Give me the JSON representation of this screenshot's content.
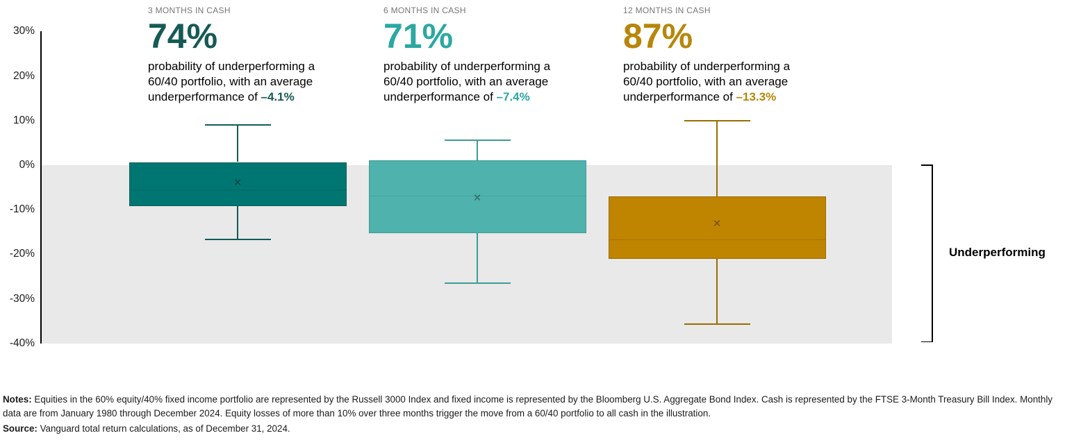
{
  "panels": [
    {
      "label": "3 MONTHS IN CASH",
      "big_number": "74%",
      "accent_color": "#165A54",
      "desc_prefix": "probability of underperforming a 60/40 portfolio, with an average underperformance of ",
      "underperformance_value": "–4.1%"
    },
    {
      "label": "6 MONTHS IN CASH",
      "big_number": "71%",
      "accent_color": "#2BA8A2",
      "desc_prefix": "probability of underperforming a 60/40 portfolio, with an average underperformance of ",
      "underperformance_value": "–7.4%"
    },
    {
      "label": "12 MONTHS IN CASH",
      "big_number": "87%",
      "accent_color": "#B7860A",
      "desc_prefix": "probability of underperforming a 60/40 portfolio, with an average underperformance of ",
      "underperformance_value": "–13.3%"
    }
  ],
  "chart_data": {
    "type": "boxplot",
    "title": "",
    "xlabel": "",
    "ylabel": "",
    "unit": "%",
    "ylim": [
      -40,
      30
    ],
    "grid": false,
    "y_ticks": [
      {
        "label": "30%",
        "value": 30
      },
      {
        "label": "20%",
        "value": 20
      },
      {
        "label": "10%",
        "value": 10
      },
      {
        "label": "0%",
        "value": 0
      },
      {
        "label": "-10%",
        "value": -10
      },
      {
        "label": "-20%",
        "value": -20
      },
      {
        "label": "-30%",
        "value": -30
      },
      {
        "label": "-40%",
        "value": -40
      }
    ],
    "series": [
      {
        "name": "3 months in cash",
        "whisker_high": 9.2,
        "q3": 0.7,
        "mean": -4.1,
        "median": -5.4,
        "q1": -9.2,
        "whisker_low": -16.5,
        "fill": "#007672",
        "line": "#0E5C59"
      },
      {
        "name": "6 months in cash",
        "whisker_high": 5.8,
        "q3": 1.1,
        "mean": -7.4,
        "median": -6.8,
        "q1": -15.3,
        "whisker_low": -26.4,
        "fill": "#50B2AC",
        "line": "#3C9C96"
      },
      {
        "name": "12 months in cash",
        "whisker_high": 10.1,
        "q3": -7.0,
        "mean": -13.3,
        "median": -16.6,
        "q1": -21.0,
        "whisker_low": -35.5,
        "fill": "#BF8400",
        "line": "#9A6C00"
      }
    ],
    "mean_marker": "×",
    "shaded_region": {
      "from": 0,
      "to": -40,
      "color": "#E9E9E9",
      "label": "Underperforming"
    }
  },
  "notes": {
    "label": "Notes:",
    "text": "Equities in the 60% equity/40% fixed income portfolio are represented by the Russell 3000 Index and fixed income is represented by the Bloomberg U.S. Aggregate Bond Index. Cash is represented by the FTSE 3-Month Treasury Bill Index. Monthly data are from January 1980 through December 2024. Equity losses of more than 10% over three months trigger the move from a 60/40 portfolio to all cash in the illustration.",
    "source_label": "Source:",
    "source_text": "Vanguard total return calculations, as of December 31, 2024."
  }
}
